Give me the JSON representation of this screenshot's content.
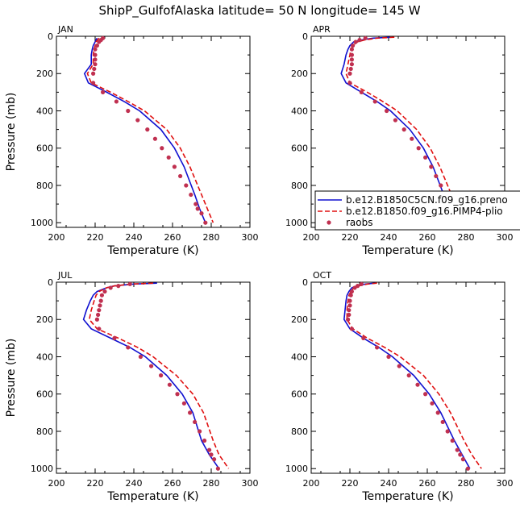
{
  "figure": {
    "title": "ShipP_GulfofAlaska  latitude= 50 N longitude= 145 W"
  },
  "colors": {
    "model1": "#1010d0",
    "model2": "#e01010",
    "raobs": "#c03050",
    "axis": "#000000",
    "background": "#ffffff"
  },
  "legend": {
    "panel": "APR",
    "entries": [
      {
        "label": "b.e12.B1850C5CN.f09_g16.preno",
        "style": "solid-line",
        "color": "#1010d0"
      },
      {
        "label": "b.e12.B1850.f09_g16.PIMP4-plio",
        "style": "dashed-line",
        "color": "#e01010"
      },
      {
        "label": "raobs",
        "style": "dot",
        "color": "#c03050"
      }
    ]
  },
  "chart_data": [
    {
      "type": "line",
      "panel": "JAN",
      "xlabel": "Temperature (K)",
      "ylabel": "Pressure (mb)",
      "xlim": [
        200,
        300
      ],
      "ylim": [
        1025,
        0
      ],
      "xticks": [
        200,
        220,
        240,
        260,
        280,
        300
      ],
      "yticks": [
        0,
        200,
        400,
        600,
        800,
        1000
      ],
      "series": [
        {
          "name": "b.e12.B1850C5CN.f09_g16.preno",
          "pressure": [
            10,
            30,
            50,
            70,
            100,
            150,
            200,
            250,
            300,
            350,
            400,
            500,
            600,
            700,
            850,
            925,
            1000
          ],
          "temperature": [
            221,
            220,
            219,
            218.5,
            218,
            218,
            214.5,
            216.5,
            226,
            235,
            243,
            254,
            261,
            266,
            271.5,
            274,
            277
          ]
        },
        {
          "name": "b.e12.B1850.f09_g16.PIMP4-plio",
          "pressure": [
            10,
            30,
            50,
            70,
            100,
            150,
            200,
            250,
            300,
            350,
            400,
            500,
            600,
            700,
            850,
            925,
            1000
          ],
          "temperature": [
            222,
            220.5,
            220,
            219.5,
            219,
            219,
            216,
            218,
            228,
            237,
            245.5,
            257,
            264,
            269,
            275,
            278,
            281
          ]
        },
        {
          "name": "raobs",
          "pressure": [
            10,
            20,
            30,
            50,
            70,
            100,
            125,
            150,
            175,
            200,
            250,
            300,
            350,
            400,
            450,
            500,
            550,
            600,
            650,
            700,
            750,
            800,
            850,
            900,
            925,
            950,
            1000
          ],
          "temperature": [
            224,
            223,
            222,
            221,
            220,
            220,
            220,
            220,
            219.5,
            219,
            219,
            224,
            231,
            237,
            242,
            247,
            251,
            254.5,
            258,
            261,
            264,
            267,
            269.5,
            272,
            273,
            275,
            277
          ]
        }
      ]
    },
    {
      "type": "line",
      "panel": "APR",
      "xlabel": "Temperature (K)",
      "ylabel": "",
      "xlim": [
        200,
        300
      ],
      "ylim": [
        1025,
        0
      ],
      "xticks": [
        200,
        220,
        240,
        260,
        280,
        300
      ],
      "yticks": [
        0,
        200,
        400,
        600,
        800,
        1000
      ],
      "series": [
        {
          "name": "b.e12.B1850C5CN.f09_g16.preno",
          "pressure": [
            5,
            10,
            20,
            30,
            50,
            70,
            100,
            150,
            200,
            250,
            300,
            350,
            400,
            500,
            600,
            700,
            850,
            925,
            1000
          ],
          "temperature": [
            241,
            232,
            226,
            222,
            220,
            219,
            218,
            217,
            215.5,
            218,
            226,
            234,
            241,
            251,
            258,
            263,
            268.5,
            271,
            273.5
          ]
        },
        {
          "name": "b.e12.B1850.f09_g16.PIMP4-plio",
          "pressure": [
            5,
            10,
            20,
            30,
            50,
            70,
            100,
            150,
            200,
            250,
            300,
            350,
            400,
            500,
            600,
            700,
            850,
            925,
            1000
          ],
          "temperature": [
            243,
            234,
            227.5,
            224,
            221.5,
            220.5,
            220,
            219,
            218,
            220,
            229,
            237,
            244.5,
            254.5,
            261.5,
            266.5,
            272.5,
            276,
            280
          ]
        },
        {
          "name": "raobs",
          "pressure": [
            10,
            20,
            30,
            50,
            70,
            100,
            125,
            150,
            175,
            200,
            250,
            300,
            350,
            400,
            450,
            500,
            550,
            600,
            650,
            700,
            750,
            800,
            850,
            900,
            925,
            950,
            1000
          ],
          "temperature": [
            228,
            225,
            223,
            221.5,
            221,
            221,
            221,
            221,
            220.5,
            220,
            220,
            226,
            233,
            239,
            243.5,
            248,
            252,
            255.5,
            259,
            262,
            264.5,
            267,
            269.5,
            272,
            273,
            275,
            277.5
          ]
        }
      ]
    },
    {
      "type": "line",
      "panel": "JUL",
      "xlabel": "Temperature (K)",
      "ylabel": "Pressure (mb)",
      "xlim": [
        200,
        300
      ],
      "ylim": [
        1025,
        0
      ],
      "xticks": [
        200,
        220,
        240,
        260,
        280,
        300
      ],
      "yticks": [
        0,
        200,
        400,
        600,
        800,
        1000
      ],
      "series": [
        {
          "name": "b.e12.B1850C5CN.f09_g16.preno",
          "pressure": [
            5,
            10,
            20,
            30,
            50,
            70,
            100,
            150,
            200,
            250,
            300,
            350,
            400,
            500,
            600,
            700,
            850,
            925,
            1000
          ],
          "temperature": [
            252,
            240,
            230,
            226,
            221,
            219,
            217.5,
            215.5,
            214,
            218,
            228,
            238,
            246,
            257,
            265,
            270.5,
            275,
            279,
            284
          ]
        },
        {
          "name": "b.e12.B1850.f09_g16.PIMP4-plio",
          "pressure": [
            5,
            10,
            20,
            30,
            50,
            70,
            100,
            150,
            200,
            250,
            300,
            350,
            400,
            500,
            600,
            700,
            850,
            925,
            1000
          ],
          "temperature": [
            250,
            239,
            230,
            226,
            222,
            220.5,
            219.5,
            218,
            217,
            221,
            232,
            242,
            250,
            262,
            270.5,
            276,
            281,
            284,
            289
          ]
        },
        {
          "name": "raobs",
          "pressure": [
            10,
            20,
            30,
            50,
            70,
            100,
            125,
            150,
            175,
            200,
            250,
            300,
            350,
            400,
            450,
            500,
            550,
            600,
            650,
            700,
            750,
            800,
            850,
            900,
            925,
            950,
            1000
          ],
          "temperature": [
            238,
            232,
            228,
            225,
            223.5,
            223,
            222.5,
            222,
            221.5,
            221,
            222,
            230,
            237,
            243.5,
            249,
            254,
            258.5,
            262.5,
            266,
            269,
            271.5,
            274,
            276.5,
            279,
            280,
            281.5,
            283.5
          ]
        }
      ]
    },
    {
      "type": "line",
      "panel": "OCT",
      "xlabel": "Temperature (K)",
      "ylabel": "",
      "xlim": [
        200,
        300
      ],
      "ylim": [
        1025,
        0
      ],
      "xticks": [
        200,
        220,
        240,
        260,
        280,
        300
      ],
      "yticks": [
        0,
        200,
        400,
        600,
        800,
        1000
      ],
      "series": [
        {
          "name": "b.e12.B1850C5CN.f09_g16.preno",
          "pressure": [
            5,
            10,
            20,
            30,
            50,
            70,
            100,
            150,
            200,
            250,
            300,
            350,
            400,
            500,
            600,
            700,
            850,
            925,
            1000
          ],
          "temperature": [
            233,
            228,
            223.5,
            221,
            219.5,
            218.5,
            218,
            217.5,
            217,
            220,
            227,
            235,
            242,
            253,
            261,
            267,
            274,
            278,
            282
          ]
        },
        {
          "name": "b.e12.B1850.f09_g16.PIMP4-plio",
          "pressure": [
            5,
            10,
            20,
            30,
            50,
            70,
            100,
            150,
            200,
            250,
            300,
            350,
            400,
            500,
            600,
            700,
            850,
            925,
            1000
          ],
          "temperature": [
            234,
            229,
            224.5,
            222,
            220.5,
            219.5,
            219,
            218.5,
            218.5,
            221.5,
            229,
            238,
            246,
            258,
            266,
            272,
            279,
            283,
            288
          ]
        },
        {
          "name": "raobs",
          "pressure": [
            10,
            20,
            30,
            50,
            70,
            100,
            125,
            150,
            175,
            200,
            250,
            300,
            350,
            400,
            450,
            500,
            550,
            600,
            650,
            700,
            750,
            800,
            850,
            900,
            925,
            950,
            1000
          ],
          "temperature": [
            226,
            224,
            222.5,
            221,
            220.5,
            220,
            220,
            219.5,
            219.5,
            219,
            221,
            227,
            234,
            240,
            245.5,
            250.5,
            255,
            259,
            262.5,
            265.5,
            268,
            270.5,
            273,
            275.5,
            277,
            278.5,
            281
          ]
        }
      ]
    }
  ]
}
